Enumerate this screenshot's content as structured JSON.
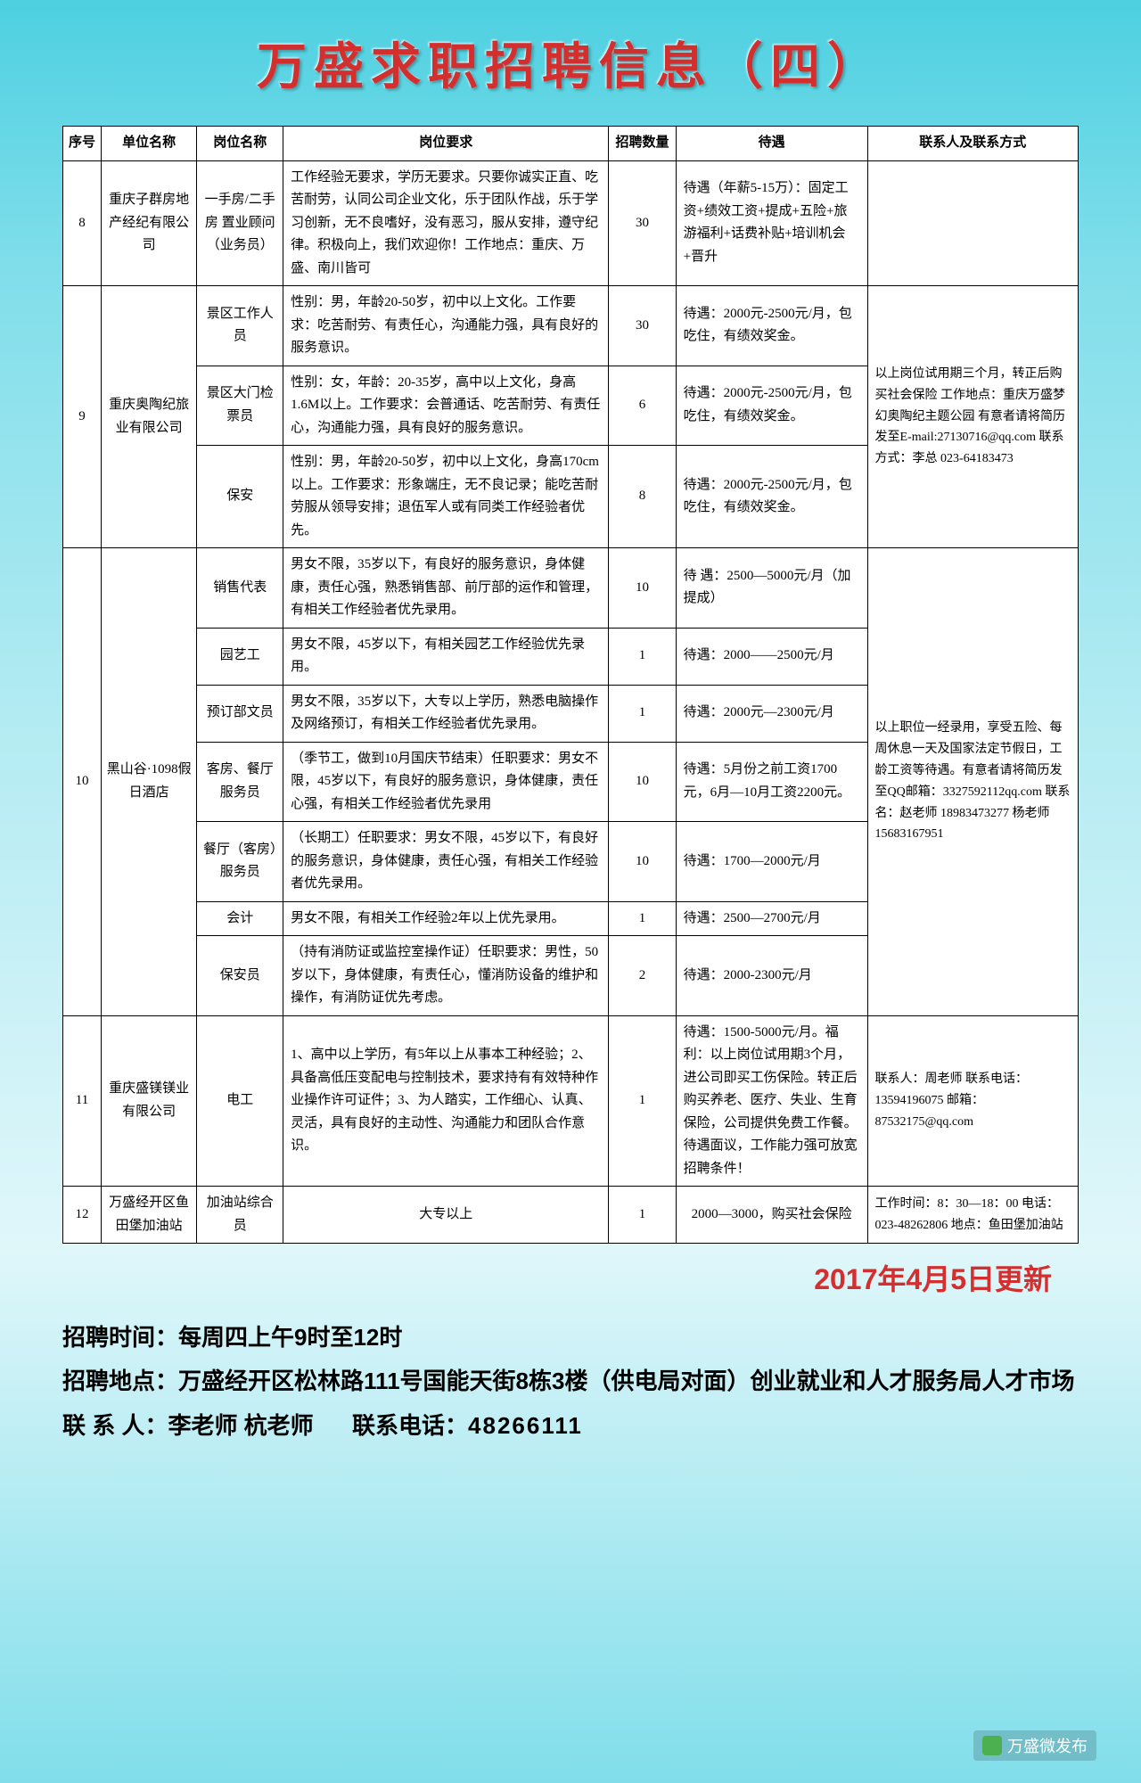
{
  "title": "万盛求职招聘信息（四）",
  "headers": {
    "num": "序号",
    "company": "单位名称",
    "position": "岗位名称",
    "requirement": "岗位要求",
    "qty": "招聘数量",
    "treatment": "待遇",
    "contact": "联系人及联系方式"
  },
  "rows": {
    "r8": {
      "num": "8",
      "company": "重庆子群房地产经纪有限公司",
      "pos": "一手房/二手房 置业顾问（业务员）",
      "req": "工作经验无要求，学历无要求。只要你诚实正直、吃苦耐劳，认同公司企业文化，乐于团队作战，乐于学习创新，无不良嗜好，没有恶习，服从安排，遵守纪律。积极向上，我们欢迎你！工作地点：重庆、万盛、南川皆可",
      "qty": "30",
      "treat": "待遇（年薪5-15万）：固定工资+绩效工资+提成+五险+旅游福利+话费补贴+培训机会+晋升",
      "contact": ""
    },
    "r9a": {
      "num": "9",
      "company": "重庆奥陶纪旅业有限公司",
      "pos": "景区工作人员",
      "req": "性别：男，年龄20-50岁，初中以上文化。工作要求：吃苦耐劳、有责任心，沟通能力强，具有良好的服务意识。",
      "qty": "30",
      "treat": "待遇：2000元-2500元/月，包吃住，有绩效奖金。",
      "contact": "以上岗位试用期三个月，转正后购买社会保险 工作地点：重庆万盛梦幻奥陶纪主题公园 有意者请将简历发至E-mail:27130716@qq.com 联系方式：李总 023-64183473"
    },
    "r9b": {
      "pos": "景区大门检票员",
      "req": "性别：女，年龄：20-35岁，高中以上文化，身高1.6M以上。工作要求：会普通话、吃苦耐劳、有责任心，沟通能力强，具有良好的服务意识。",
      "qty": "6",
      "treat": "待遇：2000元-2500元/月，包吃住，有绩效奖金。"
    },
    "r9c": {
      "pos": "保安",
      "req": "性别：男，年龄20-50岁，初中以上文化，身高170cm以上。工作要求：形象端庄，无不良记录；能吃苦耐劳服从领导安排；退伍军人或有同类工作经验者优先。",
      "qty": "8",
      "treat": "待遇：2000元-2500元/月，包吃住，有绩效奖金。"
    },
    "r10a": {
      "num": "10",
      "company": "黑山谷·1098假日酒店",
      "pos": "销售代表",
      "req": "男女不限，35岁以下，有良好的服务意识，身体健康，责任心强，熟悉销售部、前厅部的运作和管理，有相关工作经验者优先录用。",
      "qty": "10",
      "treat": "待 遇：2500—5000元/月（加提成）",
      "contact": "以上职位一经录用，享受五险、每周休息一天及国家法定节假日，工龄工资等待遇。有意者请将简历发至QQ邮箱：3327592112qq.com 联系名：赵老师 18983473277 杨老师 15683167951"
    },
    "r10b": {
      "pos": "园艺工",
      "req": "男女不限，45岁以下，有相关园艺工作经验优先录用。",
      "qty": "1",
      "treat": "待遇：2000——2500元/月"
    },
    "r10c": {
      "pos": "预订部文员",
      "req": "男女不限，35岁以下，大专以上学历，熟悉电脑操作及网络预订，有相关工作经验者优先录用。",
      "qty": "1",
      "treat": "待遇：2000元—2300元/月"
    },
    "r10d": {
      "pos": "客房、餐厅服务员",
      "req": "（季节工，做到10月国庆节结束）任职要求：男女不限，45岁以下，有良好的服务意识，身体健康，责任心强，有相关工作经验者优先录用",
      "qty": "10",
      "treat": "待遇：5月份之前工资1700元，6月—10月工资2200元。"
    },
    "r10e": {
      "pos": "餐厅（客房）服务员",
      "req": "（长期工）任职要求：男女不限，45岁以下，有良好的服务意识，身体健康，责任心强，有相关工作经验者优先录用。",
      "qty": "10",
      "treat": "待遇：1700—2000元/月"
    },
    "r10f": {
      "pos": "会计",
      "req": "男女不限，有相关工作经验2年以上优先录用。",
      "qty": "1",
      "treat": "待遇：2500—2700元/月"
    },
    "r10g": {
      "pos": "保安员",
      "req": "（持有消防证或监控室操作证）任职要求：男性，50岁以下，身体健康，有责任心，懂消防设备的维护和操作，有消防证优先考虑。",
      "qty": "2",
      "treat": "待遇：2000-2300元/月"
    },
    "r11": {
      "num": "11",
      "company": "重庆盛镁镁业有限公司",
      "pos": "电工",
      "req": "1、高中以上学历，有5年以上从事本工种经验；2、具备高低压变配电与控制技术，要求持有有效特种作业操作许可证件；3、为人踏实，工作细心、认真、灵活，具有良好的主动性、沟通能力和团队合作意识。",
      "qty": "1",
      "treat": "待遇：1500-5000元/月。福利：以上岗位试用期3个月，进公司即买工伤保险。转正后购买养老、医疗、失业、生育保险，公司提供免费工作餐。待遇面议，工作能力强可放宽招聘条件！",
      "contact": "联系人：周老师 联系电话：13594196075 邮箱：87532175@qq.com"
    },
    "r12": {
      "num": "12",
      "company": "万盛经开区鱼田堡加油站",
      "pos": "加油站综合员",
      "req": "大专以上",
      "qty": "1",
      "treat": "2000—3000，购买社会保险",
      "contact": "工作时间：8：30—18：00 电话：023-48262806 地点：鱼田堡加油站"
    }
  },
  "update_date": "2017年4月5日更新",
  "footer": {
    "time_label": "招聘时间：",
    "time": "每周四上午9时至12时",
    "addr_label": "招聘地点：",
    "addr": "万盛经开区松林路111号国能天街8栋3楼（供电局对面）创业就业和人才服务局人才市场",
    "contact_label": "联 系 人：",
    "contact": "李老师 杭老师",
    "phone_label": "联系电话：",
    "phone": "48266111"
  },
  "source": "万盛微发布"
}
